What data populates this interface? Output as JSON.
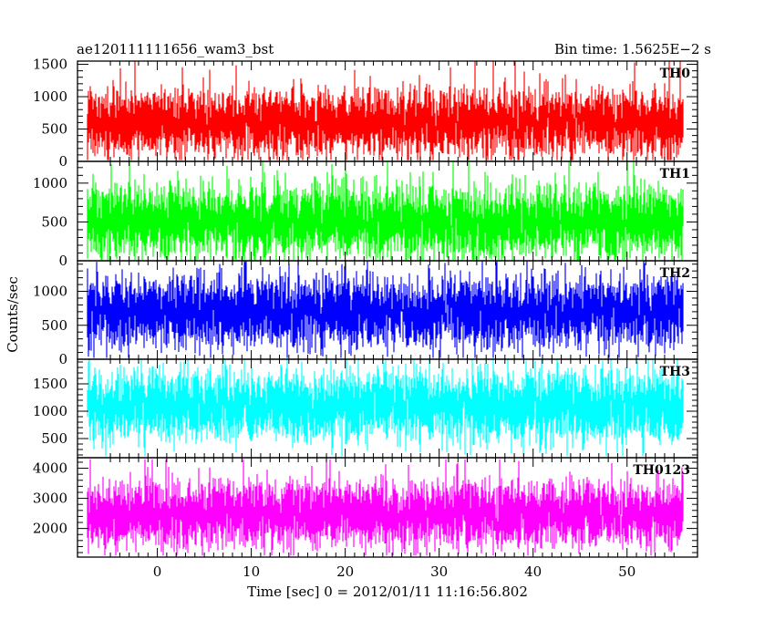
{
  "header": {
    "left_title": "ae120111111656_wam3_bst",
    "right_title": "Bin time: 1.5625E−2 s"
  },
  "xlabel": "Time [sec] 0 = 2012/01/11 11:16:56.802",
  "ylabel": "Counts/sec",
  "chart_data": {
    "type": "line",
    "title": "ae120111111656_wam3_bst",
    "subtitle": "Bin time: 1.5625E−2 s",
    "xlabel": "Time [sec] 0 = 2012/01/11 11:16:56.802",
    "ylabel": "Counts/sec",
    "xlim": [
      -8.5,
      57.5
    ],
    "data_x_range": [
      -7.5,
      56.0
    ],
    "bin_time": 0.015625,
    "x_ticks": [
      0,
      10,
      20,
      30,
      40,
      50
    ],
    "x_tick_labels": [
      "0",
      "10",
      "20",
      "30",
      "40",
      "50"
    ],
    "grid": false,
    "legend": "none",
    "panels": [
      {
        "name": "TH0",
        "color": "#ff0000",
        "ylim": [
          0,
          1550
        ],
        "y_ticks": [
          0,
          500,
          1000,
          1500
        ],
        "y_tick_labels": [
          "0",
          "500",
          "1000",
          "1500"
        ],
        "mean": 600,
        "typical_range": [
          150,
          1150
        ],
        "min": 20,
        "max": 1550
      },
      {
        "name": "TH1",
        "color": "#00ff00",
        "ylim": [
          0,
          1280
        ],
        "y_ticks": [
          0,
          500,
          1000
        ],
        "y_tick_labels": [
          "0",
          "500",
          "1000"
        ],
        "mean": 500,
        "typical_range": [
          100,
          1000
        ],
        "min": 10,
        "max": 1280
      },
      {
        "name": "TH2",
        "color": "#0000ff",
        "ylim": [
          0,
          1450
        ],
        "y_ticks": [
          0,
          500,
          1000
        ],
        "y_tick_labels": [
          "0",
          "500",
          "1000"
        ],
        "mean": 700,
        "typical_range": [
          150,
          1150
        ],
        "min": 20,
        "max": 1450
      },
      {
        "name": "TH3",
        "color": "#00ffff",
        "ylim": [
          150,
          1950
        ],
        "y_ticks": [
          500,
          1000,
          1500
        ],
        "y_tick_labels": [
          "500",
          "1000",
          "1500"
        ],
        "mean": 1100,
        "typical_range": [
          400,
          1700
        ],
        "min": 180,
        "max": 1950
      },
      {
        "name": "TH0123",
        "color": "#ff00ff",
        "ylim": [
          1050,
          4350
        ],
        "y_ticks": [
          2000,
          3000,
          4000
        ],
        "y_tick_labels": [
          "2000",
          "3000",
          "4000"
        ],
        "mean": 2500,
        "typical_range": [
          1500,
          3600
        ],
        "min": 1100,
        "max": 4300
      }
    ]
  }
}
